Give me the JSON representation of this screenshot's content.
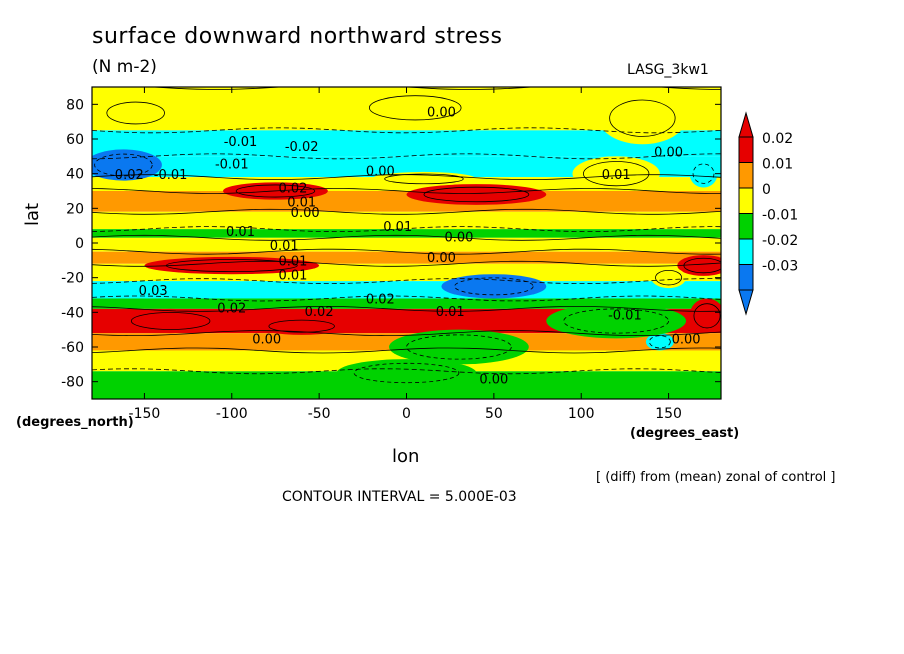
{
  "chart_data": {
    "type": "heatmap",
    "title": "surface downward northward stress",
    "units": "(N m-2)",
    "model": "LASG_3kw1",
    "xlabel": "lon",
    "ylabel": "lat",
    "x_unit": "(degrees_east)",
    "y_unit": "(degrees_north)",
    "xlim": [
      -180,
      180
    ],
    "ylim": [
      -90,
      90
    ],
    "x_ticks": [
      "-150",
      "-100",
      "-50",
      "0",
      "50",
      "100",
      "150"
    ],
    "x_tick_values": [
      -150,
      -100,
      -50,
      0,
      50,
      100,
      150
    ],
    "y_ticks": [
      "80",
      "60",
      "40",
      "20",
      "0",
      "-20",
      "-40",
      "-60",
      "-80"
    ],
    "y_tick_values": [
      80,
      60,
      40,
      20,
      0,
      -20,
      -40,
      -60,
      -80
    ],
    "colorbar": {
      "labels": [
        "0.02",
        "0.01",
        "0",
        "-0.01",
        "-0.02",
        "-0.03"
      ],
      "levels": [
        0.02,
        0.01,
        0,
        -0.01,
        -0.02,
        -0.03
      ],
      "colors": [
        "#e60000",
        "#ff9900",
        "#ffff00",
        "#00d200",
        "#00ffff",
        "#0a78f0"
      ],
      "top_arrow_color": "#e60000",
      "bottom_arrow_color": "#0a78f0"
    },
    "bands": [
      {
        "lat_min": 65,
        "lat_max": 90,
        "value": 0.0
      },
      {
        "lat_min": 50,
        "lat_max": 65,
        "value": -0.012
      },
      {
        "lat_min": 38,
        "lat_max": 50,
        "value": -0.02
      },
      {
        "lat_min": 30,
        "lat_max": 38,
        "value": 0.005
      },
      {
        "lat_min": 18,
        "lat_max": 30,
        "value": 0.018
      },
      {
        "lat_min": 8,
        "lat_max": 18,
        "value": 0.006
      },
      {
        "lat_min": 3,
        "lat_max": 8,
        "value": -0.006
      },
      {
        "lat_min": -5,
        "lat_max": 3,
        "value": 0.0
      },
      {
        "lat_min": -12,
        "lat_max": -5,
        "value": 0.018
      },
      {
        "lat_min": -22,
        "lat_max": -12,
        "value": 0.004
      },
      {
        "lat_min": -32,
        "lat_max": -22,
        "value": -0.018
      },
      {
        "lat_min": -38,
        "lat_max": -32,
        "value": -0.008
      },
      {
        "lat_min": -52,
        "lat_max": -38,
        "value": 0.025
      },
      {
        "lat_min": -62,
        "lat_max": -52,
        "value": 0.012
      },
      {
        "lat_min": -74,
        "lat_max": -62,
        "value": 0.003
      },
      {
        "lat_min": -90,
        "lat_max": -74,
        "value": -0.006
      }
    ],
    "blobs": [
      {
        "lon": -162,
        "lat": 45,
        "rlon": 22,
        "rlat": 9,
        "value": -0.032
      },
      {
        "lon": -75,
        "lat": 30,
        "rlon": 30,
        "rlat": 5,
        "value": 0.025
      },
      {
        "lon": 40,
        "lat": 28,
        "rlon": 40,
        "rlat": 6,
        "value": 0.025
      },
      {
        "lon": 10,
        "lat": 37,
        "rlon": 30,
        "rlat": 4,
        "value": 0.006
      },
      {
        "lon": 5,
        "lat": 78,
        "rlon": 35,
        "rlat": 10,
        "value": 0.005
      },
      {
        "lon": 135,
        "lat": 72,
        "rlon": 25,
        "rlat": 15,
        "value": 0.004
      },
      {
        "lon": -155,
        "lat": 75,
        "rlon": 22,
        "rlat": 9,
        "value": 0.005
      },
      {
        "lon": -100,
        "lat": -13,
        "rlon": 50,
        "rlat": 5,
        "value": 0.025
      },
      {
        "lon": 170,
        "lat": -13,
        "rlon": 15,
        "rlat": 6,
        "value": 0.028
      },
      {
        "lon": 50,
        "lat": -25,
        "rlon": 30,
        "rlat": 7,
        "value": -0.025
      },
      {
        "lon": -135,
        "lat": -45,
        "rlon": 30,
        "rlat": 7,
        "value": 0.028
      },
      {
        "lon": -60,
        "lat": -48,
        "rlon": 25,
        "rlat": 5,
        "value": 0.028
      },
      {
        "lon": 172,
        "lat": -42,
        "rlon": 10,
        "rlat": 10,
        "value": 0.028
      },
      {
        "lon": 145,
        "lat": -57,
        "rlon": 8,
        "rlat": 5,
        "value": -0.018
      },
      {
        "lon": 150,
        "lat": -20,
        "rlon": 10,
        "rlat": 6,
        "value": 0.008
      },
      {
        "lon": 120,
        "lat": 40,
        "rlon": 25,
        "rlat": 10,
        "value": 0.0
      },
      {
        "lon": 170,
        "lat": 40,
        "rlon": 8,
        "rlat": 8,
        "value": -0.02
      },
      {
        "lon": 0,
        "lat": -75,
        "rlon": 40,
        "rlat": 8,
        "value": -0.005
      },
      {
        "lon": 30,
        "lat": -60,
        "rlon": 40,
        "rlat": 10,
        "value": -0.005
      },
      {
        "lon": 120,
        "lat": -45,
        "rlon": 40,
        "rlat": 10,
        "value": -0.006
      }
    ],
    "contour_labels": [
      {
        "text": "0.00",
        "lon": 20,
        "lat": 73
      },
      {
        "text": "-0.01",
        "lon": -95,
        "lat": 56
      },
      {
        "text": "-0.02",
        "lon": -60,
        "lat": 53
      },
      {
        "text": "-0.01",
        "lon": -100,
        "lat": 43
      },
      {
        "text": "-0.02",
        "lon": -160,
        "lat": 37
      },
      {
        "text": "-0.01",
        "lon": -135,
        "lat": 37
      },
      {
        "text": "0.00",
        "lon": -15,
        "lat": 39
      },
      {
        "text": "0.01",
        "lon": 120,
        "lat": 37
      },
      {
        "text": "0.00",
        "lon": 150,
        "lat": 50
      },
      {
        "text": "0.02",
        "lon": -65,
        "lat": 29
      },
      {
        "text": "0.01",
        "lon": -60,
        "lat": 21
      },
      {
        "text": "0.00",
        "lon": -58,
        "lat": 15
      },
      {
        "text": "0.01",
        "lon": -95,
        "lat": 4
      },
      {
        "text": "0.01",
        "lon": -5,
        "lat": 7
      },
      {
        "text": "0.00",
        "lon": 30,
        "lat": 1
      },
      {
        "text": "0.01",
        "lon": -70,
        "lat": -4
      },
      {
        "text": "0.00",
        "lon": 20,
        "lat": -11
      },
      {
        "text": "0.01",
        "lon": -65,
        "lat": -13
      },
      {
        "text": "0.01",
        "lon": -65,
        "lat": -21
      },
      {
        "text": "0.02",
        "lon": -15,
        "lat": -35
      },
      {
        "text": "0.03",
        "lon": -145,
        "lat": -30
      },
      {
        "text": "0.02",
        "lon": -100,
        "lat": -40
      },
      {
        "text": "0.02",
        "lon": -50,
        "lat": -42
      },
      {
        "text": "0.01",
        "lon": 25,
        "lat": -42
      },
      {
        "text": "0.00",
        "lon": -80,
        "lat": -58
      },
      {
        "text": "-0.01",
        "lon": 125,
        "lat": -44
      },
      {
        "text": "0.00",
        "lon": 160,
        "lat": -58
      },
      {
        "text": "0.00",
        "lon": 50,
        "lat": -81
      }
    ]
  },
  "annotations": {
    "diff_note": "[ (diff) from (mean) zonal of control ]",
    "contour_interval": "CONTOUR INTERVAL = 5.000E-03"
  }
}
